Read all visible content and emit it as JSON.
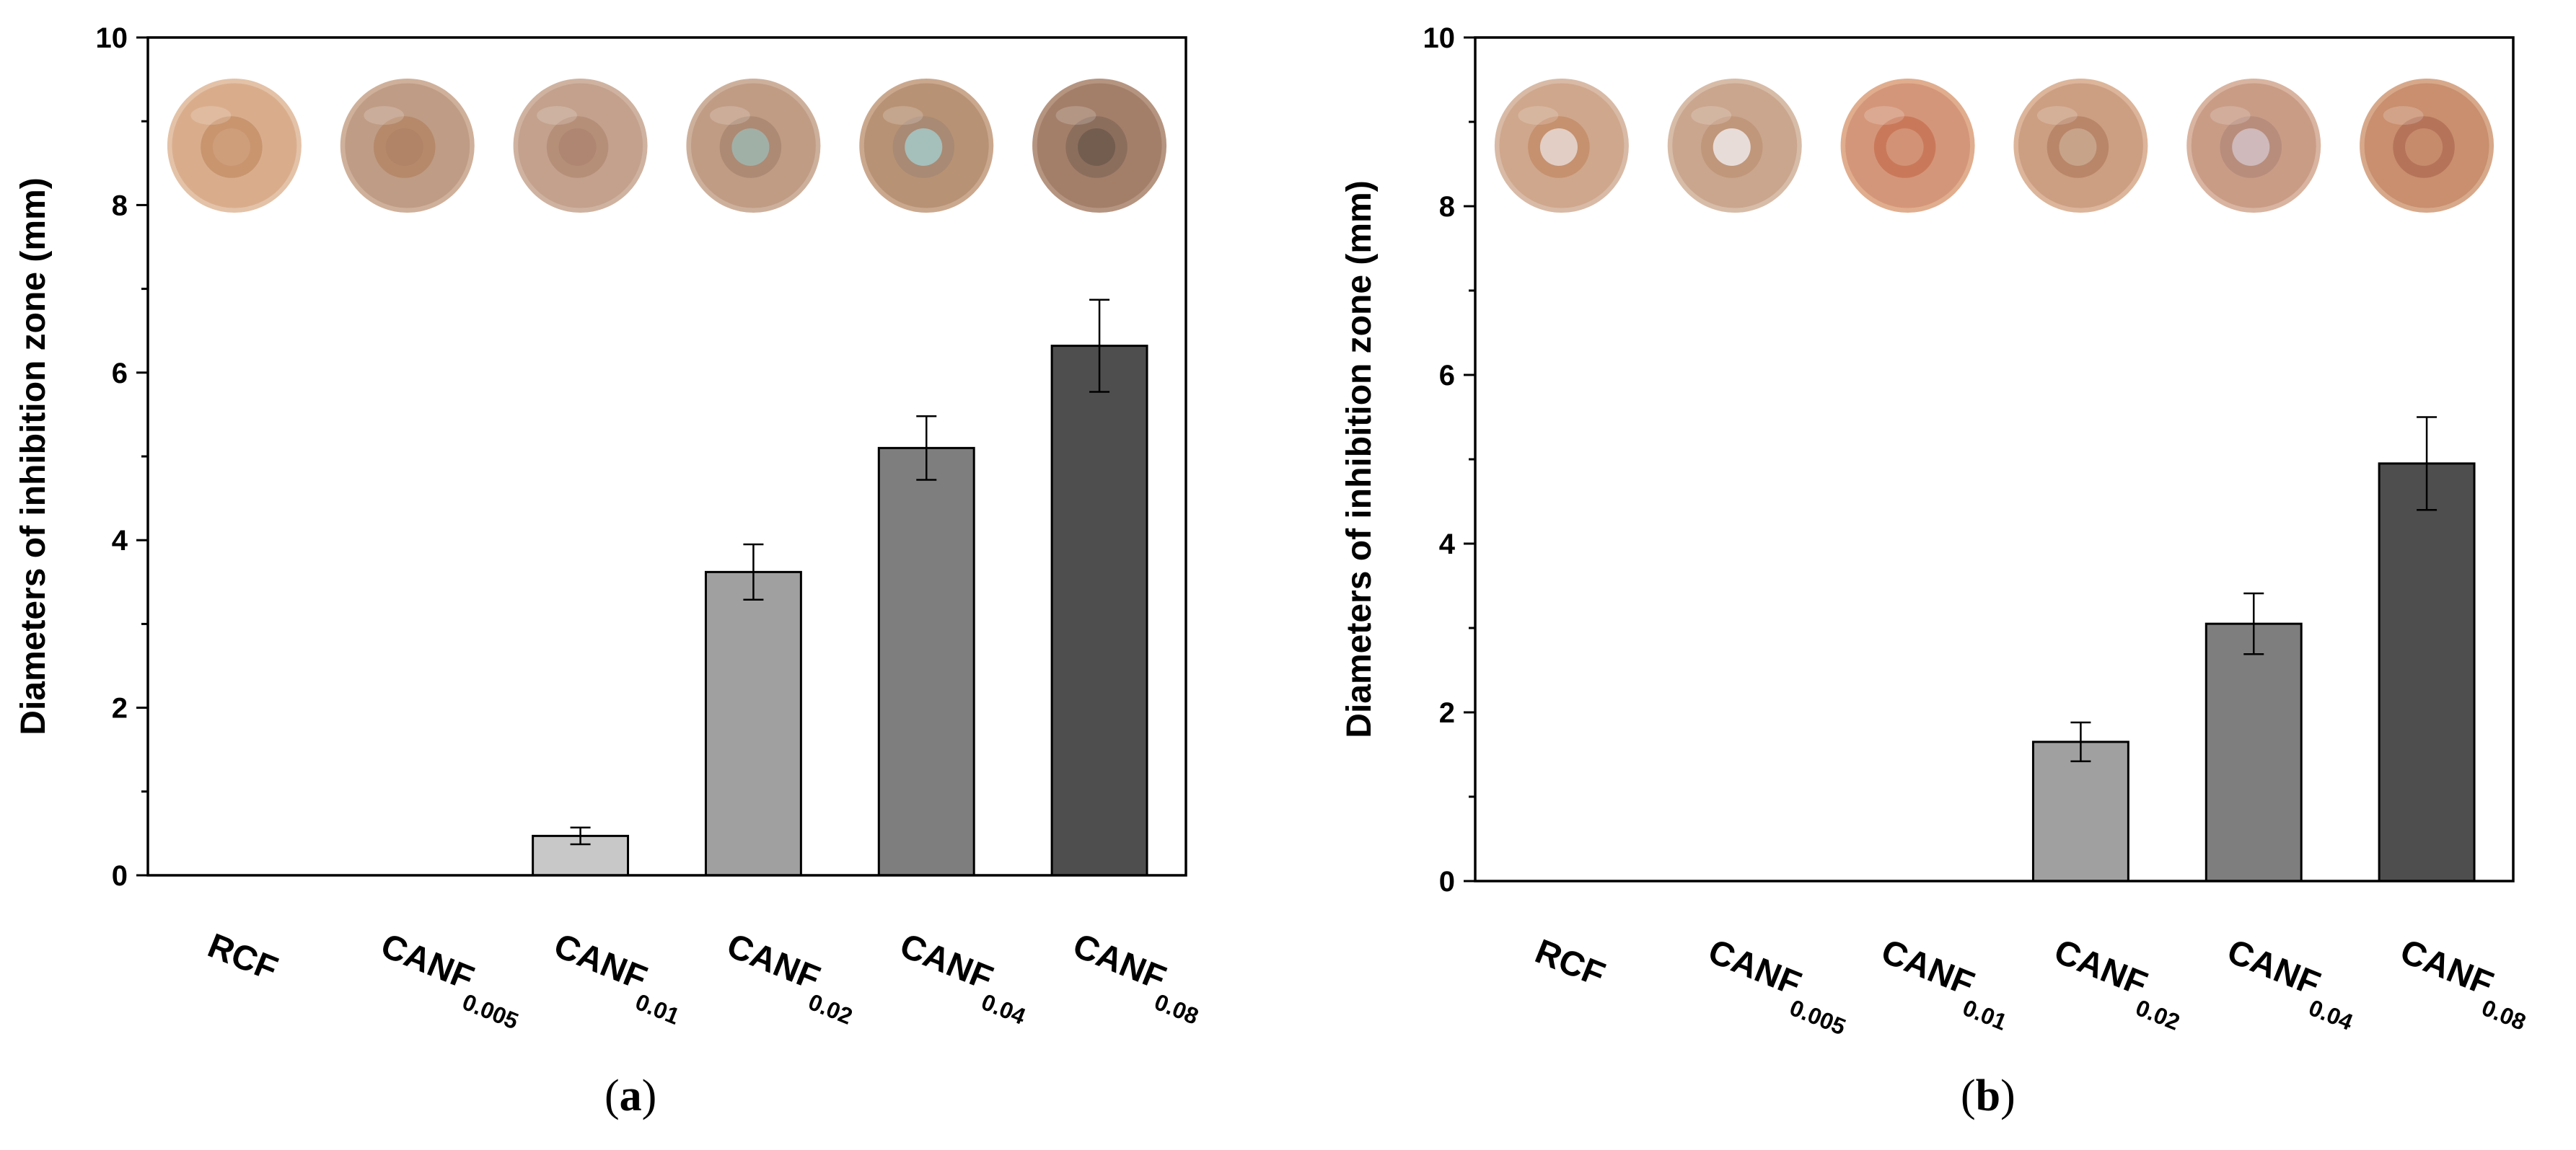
{
  "chart_data": [
    {
      "type": "bar",
      "panel_label": "a",
      "ylabel": "Diameters of inhibition zone (mm)",
      "ylim": [
        0,
        10
      ],
      "yticks": [
        "0",
        "2",
        "4",
        "6",
        "8",
        "10"
      ],
      "categories": [
        {
          "base": "RCF",
          "sub": ""
        },
        {
          "base": "CANF",
          "sub": "0.005"
        },
        {
          "base": "CANF",
          "sub": "0.01"
        },
        {
          "base": "CANF",
          "sub": "0.02"
        },
        {
          "base": "CANF",
          "sub": "0.04"
        },
        {
          "base": "CANF",
          "sub": "0.08"
        }
      ],
      "values": [
        0,
        0,
        0.47,
        3.62,
        5.1,
        6.32
      ],
      "errors": [
        0,
        0,
        0.1,
        0.33,
        0.38,
        0.55
      ],
      "bar_colors": [
        "#ffffff",
        "#e6e6e6",
        "#c8c8c8",
        "#a0a0a0",
        "#7e7e7e",
        "#4e4e4e"
      ],
      "sample_photos": [
        "photo-rcf",
        "photo-canf-0.005",
        "photo-canf-0.01",
        "photo-canf-0.02",
        "photo-canf-0.04",
        "photo-canf-0.08"
      ]
    },
    {
      "type": "bar",
      "panel_label": "b",
      "ylabel": "Diameters of inhibition zone (mm)",
      "ylim": [
        0,
        10
      ],
      "yticks": [
        "0",
        "2",
        "4",
        "6",
        "8",
        "10"
      ],
      "categories": [
        {
          "base": "RCF",
          "sub": ""
        },
        {
          "base": "CANF",
          "sub": "0.005"
        },
        {
          "base": "CANF",
          "sub": "0.01"
        },
        {
          "base": "CANF",
          "sub": "0.02"
        },
        {
          "base": "CANF",
          "sub": "0.04"
        },
        {
          "base": "CANF",
          "sub": "0.08"
        }
      ],
      "values": [
        0,
        0,
        0,
        1.65,
        3.05,
        4.95
      ],
      "errors": [
        0,
        0,
        0,
        0.23,
        0.36,
        0.55
      ],
      "bar_colors": [
        "#ffffff",
        "#e6e6e6",
        "#c8c8c8",
        "#a0a0a0",
        "#7e7e7e",
        "#4e4e4e"
      ],
      "sample_photos": [
        "photo-rcf",
        "photo-canf-0.005",
        "photo-canf-0.01",
        "photo-canf-0.02",
        "photo-canf-0.04",
        "photo-canf-0.08"
      ]
    }
  ]
}
